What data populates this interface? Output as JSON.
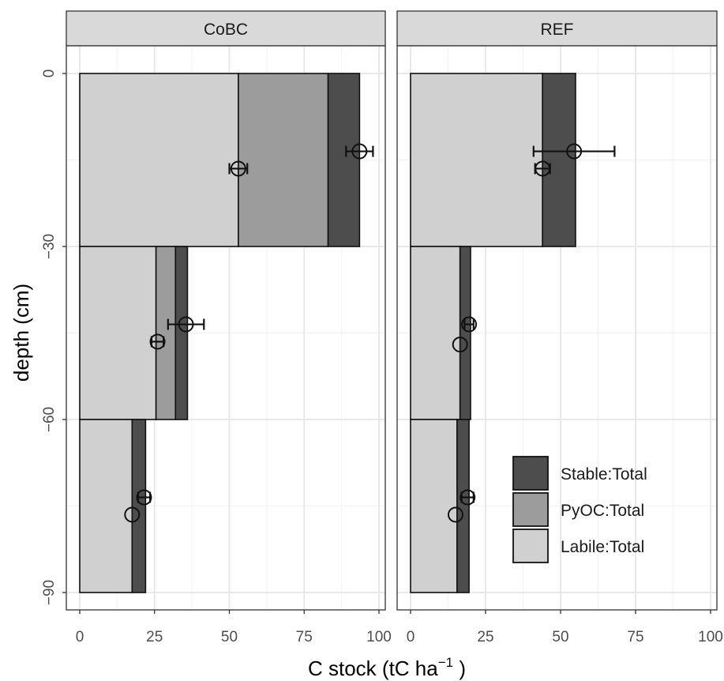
{
  "chart_data": {
    "type": "bar",
    "orientation": "horizontal-stacked",
    "xlabel": "C stock (tC ha",
    "xlabel_superscript": "−1",
    "xlabel_suffix": " )",
    "ylabel": "depth (cm)",
    "xlim": [
      0,
      100
    ],
    "ylim": [
      -90,
      0
    ],
    "x_ticks": [
      "0",
      "25",
      "50",
      "75",
      "100"
    ],
    "y_ticks": [
      "0",
      "−30",
      "−60",
      "−90"
    ],
    "grid": true,
    "legend_position": "bottom-right",
    "legend": [
      {
        "key": "stable",
        "label": "Stable:Total",
        "color": "#4d4d4d"
      },
      {
        "key": "pyoc",
        "label": "PyOC:Total",
        "color": "#9c9c9c"
      },
      {
        "key": "labile",
        "label": "Labile:Total",
        "color": "#d0d0d0"
      }
    ],
    "panels": [
      {
        "name": "CoBC",
        "layers": [
          {
            "top": 0,
            "bottom": -30,
            "segments": [
              {
                "key": "labile",
                "value": 53
              },
              {
                "key": "pyoc",
                "value": 30
              },
              {
                "key": "stable",
                "value": 10.5
              }
            ]
          },
          {
            "top": -30,
            "bottom": -60,
            "segments": [
              {
                "key": "labile",
                "value": 25.5
              },
              {
                "key": "pyoc",
                "value": 6.5
              },
              {
                "key": "stable",
                "value": 4
              }
            ]
          },
          {
            "top": -60,
            "bottom": -90,
            "segments": [
              {
                "key": "labile",
                "value": 17.5
              },
              {
                "key": "pyoc",
                "value": 0
              },
              {
                "key": "stable",
                "value": 4.5
              }
            ]
          }
        ],
        "points": [
          {
            "x": 93.5,
            "y": -13.5,
            "err": 4.5
          },
          {
            "x": 53,
            "y": -16.5,
            "err": 3
          },
          {
            "x": 35.5,
            "y": -43.5,
            "err": 6
          },
          {
            "x": 26,
            "y": -46.5,
            "err": 2
          },
          {
            "x": 21.5,
            "y": -73.5,
            "err": 2
          },
          {
            "x": 17.5,
            "y": -76.5,
            "err": 0
          }
        ]
      },
      {
        "name": "REF",
        "layers": [
          {
            "top": 0,
            "bottom": -30,
            "segments": [
              {
                "key": "labile",
                "value": 44
              },
              {
                "key": "pyoc",
                "value": 0
              },
              {
                "key": "stable",
                "value": 11
              }
            ]
          },
          {
            "top": -30,
            "bottom": -60,
            "segments": [
              {
                "key": "labile",
                "value": 16.5
              },
              {
                "key": "pyoc",
                "value": 0
              },
              {
                "key": "stable",
                "value": 3.5
              }
            ]
          },
          {
            "top": -60,
            "bottom": -90,
            "segments": [
              {
                "key": "labile",
                "value": 15.5
              },
              {
                "key": "pyoc",
                "value": 0
              },
              {
                "key": "stable",
                "value": 4
              }
            ]
          }
        ],
        "points": [
          {
            "x": 54.5,
            "y": -13.5,
            "err": 13.5
          },
          {
            "x": 44,
            "y": -16.5,
            "err": 2.5
          },
          {
            "x": 19.5,
            "y": -43.5,
            "err": 1.5
          },
          {
            "x": 16.5,
            "y": -47,
            "err": 0
          },
          {
            "x": 19,
            "y": -73.5,
            "err": 2
          },
          {
            "x": 15,
            "y": -76.5,
            "err": 0
          }
        ]
      }
    ]
  }
}
